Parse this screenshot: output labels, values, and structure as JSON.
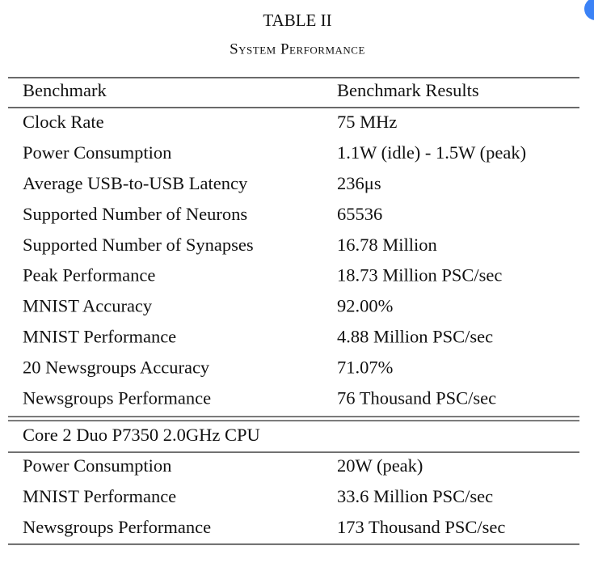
{
  "title": "TABLE II",
  "subtitle": "System Performance",
  "table": {
    "header": [
      "Benchmark",
      "Benchmark Results"
    ],
    "sections": [
      {
        "rows": [
          [
            "Clock Rate",
            "75 MHz"
          ],
          [
            "Power Consumption",
            "1.1W (idle) - 1.5W (peak)"
          ],
          [
            "Average USB-to-USB Latency",
            "236μs"
          ],
          [
            "Supported Number of Neurons",
            "65536"
          ],
          [
            "Supported Number of Synapses",
            "16.78 Million"
          ],
          [
            "Peak Performance",
            "18.73 Million PSC/sec"
          ],
          [
            "MNIST Accuracy",
            "92.00%"
          ],
          [
            "MNIST Performance",
            "4.88 Million PSC/sec"
          ],
          [
            "20 Newsgroups Accuracy",
            "71.07%"
          ],
          [
            "Newsgroups Performance",
            "76 Thousand PSC/sec"
          ]
        ]
      },
      {
        "heading": "Core 2 Duo P7350 2.0GHz CPU",
        "rows": [
          [
            "Power Consumption",
            "20W (peak)"
          ],
          [
            "MNIST Performance",
            "33.6 Million PSC/sec"
          ],
          [
            "Newsgroups Performance",
            "173 Thousand PSC/sec"
          ]
        ]
      }
    ]
  }
}
